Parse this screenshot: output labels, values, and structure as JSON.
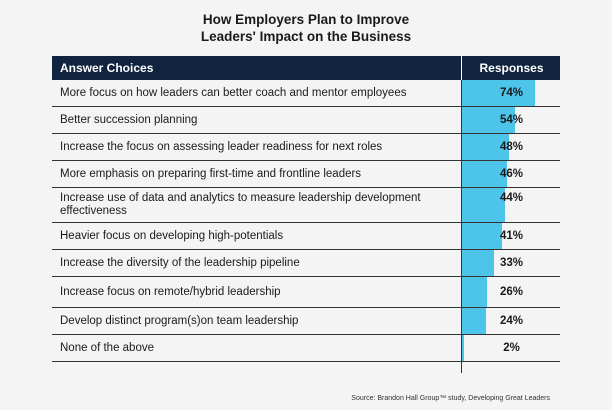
{
  "chart_data": {
    "type": "table",
    "title_line1": "How Employers Plan to Improve",
    "title_line2": "Leaders' Impact on the Business",
    "columns": [
      "Answer Choices",
      "Responses"
    ],
    "categories": [
      "More focus on how leaders can better coach and mentor employees",
      "Better succession planning",
      "Increase the focus on assessing leader readiness for next roles",
      "More emphasis on preparing first-time and frontline leaders",
      "Increase use of data and analytics to measure leadership development effectiveness",
      "Heavier focus on developing high-potentials",
      "Increase the diversity of the leadership pipeline",
      "Increase focus on remote/hybrid leadership",
      "Develop distinct program(s)on team leadership",
      "None of the above"
    ],
    "values": [
      74,
      54,
      48,
      46,
      44,
      41,
      33,
      26,
      24,
      2
    ],
    "value_labels": [
      "74%",
      "54%",
      "48%",
      "46%",
      "44%",
      "41%",
      "33%",
      "26%",
      "24%",
      "2%"
    ],
    "unit": "%",
    "bar_color": "#4dc4ea",
    "header_color": "#10233f",
    "source": "Source: Brandon Hall Group™ study, Developing Great Leaders"
  }
}
